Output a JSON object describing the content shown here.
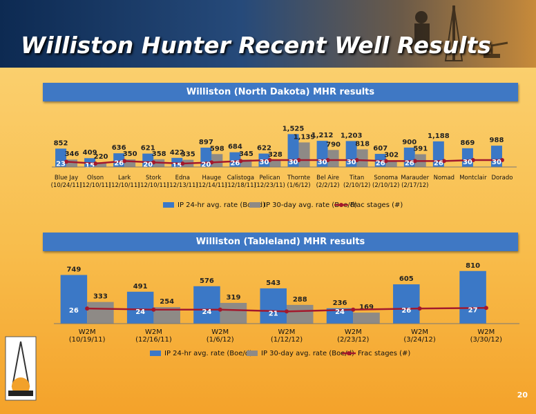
{
  "slide": {
    "title": "Williston Hunter Recent Well Results",
    "page_number": "20"
  },
  "chart_data": [
    {
      "type": "bar",
      "title": "Williston (North Dakota) MHR results",
      "categories": [
        "Blue Jay\n(10/24/11)",
        "Olson\n(12/10/11)",
        "Lark\n(12/10/11)",
        "Stork\n(12/10/11)",
        "Edna\n(12/13/11)",
        "Hauge\n(12/14/11)",
        "Calistoga\n(12/18/11)",
        "Pelican\n(12/23/11)",
        "Thornte\n(1/6/12)",
        "Bel Aire\n(2/2/12)",
        "Titan\n(2/10/12)",
        "Sonoma\n(2/10/12)",
        "Marauder\n(2/17/12)",
        "Nomad",
        "Montclair",
        "Dorado"
      ],
      "series": [
        {
          "name": "IP 24-hr avg. rate (Boe/d)",
          "color": "#3b78c6",
          "type": "bar",
          "values": [
            852,
            409,
            636,
            621,
            422,
            897,
            684,
            622,
            1525,
            1212,
            1203,
            607,
            900,
            1188,
            869,
            988
          ],
          "value_labels": [
            "852",
            "409",
            "636",
            "621",
            "422",
            "897",
            "684",
            "622",
            "1,525",
            "1,212",
            "1,203",
            "607",
            "900",
            "1,188",
            "869",
            "988"
          ]
        },
        {
          "name": "IP 30-day avg. rate (Boe/d)",
          "color": "#8e8a86",
          "type": "bar",
          "values": [
            346,
            220,
            350,
            358,
            335,
            598,
            345,
            328,
            1139,
            790,
            818,
            302,
            591,
            null,
            null,
            null
          ],
          "value_labels": [
            "346",
            "220",
            "350",
            "358",
            "335",
            "598",
            "345",
            "328",
            "1,139",
            "790",
            "818",
            "302",
            "591",
            null,
            null,
            null
          ]
        },
        {
          "name": "Frac stages (#)",
          "color": "#a3182c",
          "type": "line",
          "axis": "y2",
          "values": [
            23,
            15,
            26,
            20,
            15,
            20,
            26,
            30,
            30,
            30,
            30,
            26,
            26,
            26,
            30,
            30
          ]
        }
      ],
      "ylim": [
        0,
        1600
      ],
      "y2lim": [
        0,
        150
      ]
    },
    {
      "type": "bar",
      "title": "Williston (Tableland) MHR results",
      "categories": [
        "W2M (10/19/11)",
        "W2M (12/16/11)",
        "W2M (1/6/12)",
        "W2M (1/12/12)",
        "W2M (2/23/12)",
        "W2M (3/24/12)",
        "W2M (3/30/12)"
      ],
      "series": [
        {
          "name": "IP 24-hr avg. rate (Boe/d)",
          "color": "#3b78c6",
          "type": "bar",
          "values": [
            749,
            491,
            576,
            543,
            236,
            605,
            810
          ]
        },
        {
          "name": "IP 30-day avg. rate (Boe/d)",
          "color": "#8e8a86",
          "type": "bar",
          "values": [
            333,
            254,
            319,
            288,
            169,
            null,
            null
          ]
        },
        {
          "name": "Frac stages (#)",
          "color": "#a3182c",
          "type": "line",
          "axis": "y2",
          "values": [
            26,
            24,
            24,
            21,
            24,
            26,
            27
          ]
        }
      ],
      "ylim": [
        0,
        850
      ],
      "y2lim": [
        0,
        95
      ]
    }
  ]
}
